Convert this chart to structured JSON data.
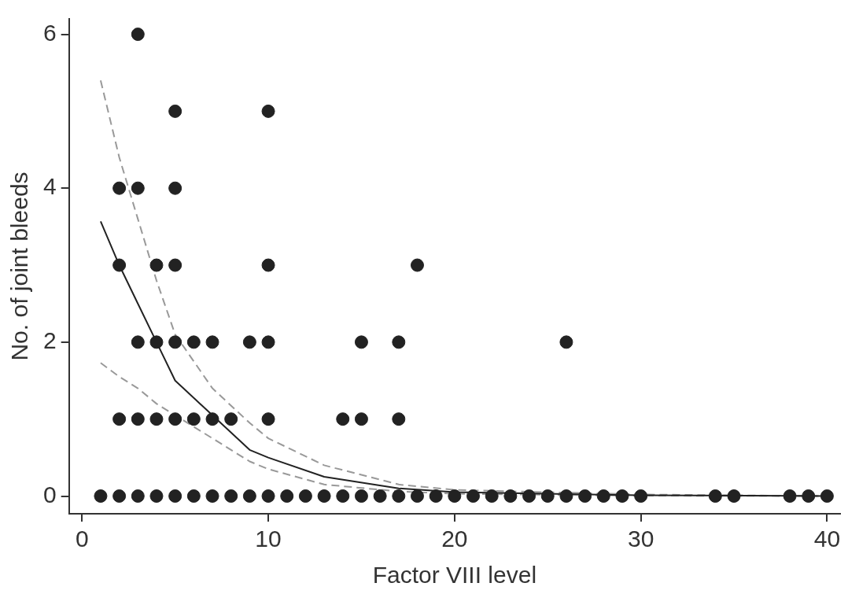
{
  "chart_data": {
    "type": "scatter",
    "xlabel": "Factor VIII level",
    "ylabel": "No. of joint bleeds",
    "xlim": [
      -0.7,
      40.7
    ],
    "ylim": [
      -0.23,
      6.2
    ],
    "xticks": [
      0,
      10,
      20,
      30,
      40
    ],
    "yticks": [
      0,
      2,
      4,
      6
    ],
    "grid": false,
    "legend": false,
    "marker": "circle",
    "series": [
      {
        "color": "#222222",
        "x": [
          1,
          2,
          3,
          4,
          5,
          6,
          7,
          8,
          9,
          10,
          11,
          12,
          13,
          14,
          15,
          16,
          17,
          18,
          19,
          20,
          21,
          22,
          23,
          24,
          25,
          26,
          27,
          28,
          29,
          30,
          34,
          35,
          38,
          39,
          40,
          2,
          3,
          4,
          5,
          6,
          7,
          8,
          10,
          14,
          15,
          17,
          3,
          4,
          5,
          6,
          7,
          9,
          10,
          15,
          17,
          26,
          2,
          4,
          5,
          10,
          18,
          2,
          3,
          5,
          5,
          10,
          3
        ],
        "values": [
          0,
          0,
          0,
          0,
          0,
          0,
          0,
          0,
          0,
          0,
          0,
          0,
          0,
          0,
          0,
          0,
          0,
          0,
          0,
          0,
          0,
          0,
          0,
          0,
          0,
          0,
          0,
          0,
          0,
          0,
          0,
          0,
          0,
          0,
          0,
          1,
          1,
          1,
          1,
          1,
          1,
          1,
          1,
          1,
          1,
          1,
          2,
          2,
          2,
          2,
          2,
          2,
          2,
          2,
          2,
          2,
          3,
          3,
          3,
          3,
          3,
          4,
          4,
          4,
          5,
          5,
          6
        ]
      },
      {
        "type": "line",
        "color": "#222222",
        "line_style": "solid",
        "marker": "none",
        "x": [
          1,
          2,
          3,
          4,
          5,
          7,
          9,
          10,
          13,
          17,
          20,
          30,
          40
        ],
        "values": [
          3.57,
          3.0,
          2.5,
          2.0,
          1.5,
          1.05,
          0.6,
          0.5,
          0.25,
          0.1,
          0.05,
          0.01,
          0
        ]
      },
      {
        "type": "line",
        "color": "#999999",
        "line_style": "dashed",
        "marker": "none",
        "x": [
          1,
          2,
          3,
          4,
          5,
          7,
          9,
          10,
          13,
          17,
          20,
          30,
          40
        ],
        "values": [
          1.73,
          1.55,
          1.4,
          1.2,
          1.05,
          0.75,
          0.45,
          0.35,
          0.15,
          0.06,
          0.03,
          0.005,
          0
        ]
      },
      {
        "type": "line",
        "color": "#999999",
        "line_style": "dashed",
        "marker": "none",
        "x": [
          1,
          2,
          3,
          4,
          5,
          7,
          9,
          10,
          13,
          17,
          20,
          30,
          40
        ],
        "values": [
          5.4,
          4.4,
          3.6,
          2.8,
          2.1,
          1.4,
          0.95,
          0.75,
          0.4,
          0.15,
          0.08,
          0.02,
          0
        ]
      }
    ]
  }
}
